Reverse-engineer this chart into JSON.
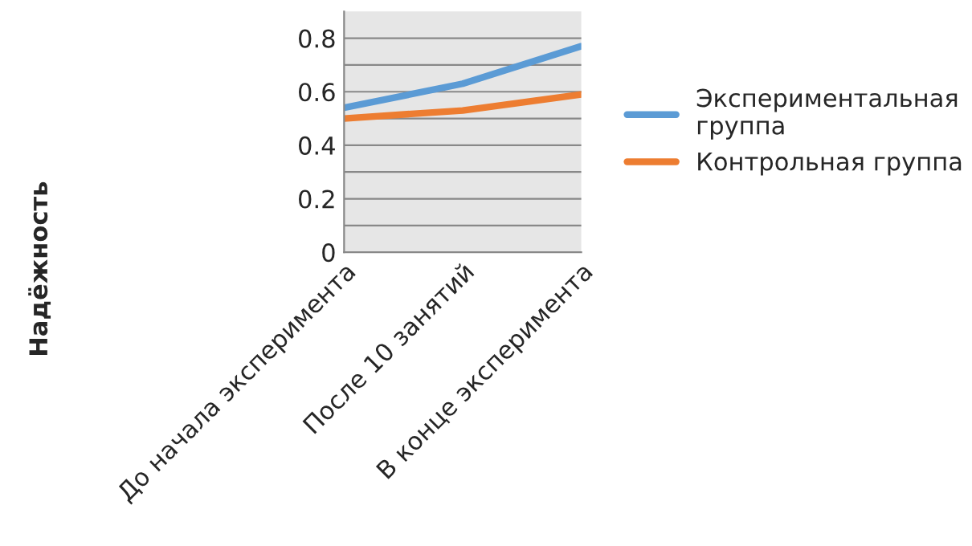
{
  "chart_data": {
    "type": "line",
    "ylabel": "Надёжность",
    "categories": [
      "До начала эксперимента",
      "После 10 занятий",
      "В конце эксперимента"
    ],
    "series": [
      {
        "name": "Экспериментальная группа",
        "color": "#5b9bd5",
        "values": [
          0.54,
          0.63,
          0.77
        ]
      },
      {
        "name": "Контрольная группа",
        "color": "#ed7d31",
        "values": [
          0.5,
          0.53,
          0.59
        ]
      }
    ],
    "ylim": [
      0,
      0.9
    ],
    "yticks": [
      0,
      {
        "value": 0.1,
        "label": null
      },
      0.2,
      {
        "value": 0.3,
        "label": null
      },
      0.4,
      {
        "value": 0.5,
        "label": null
      },
      0.6,
      {
        "value": 0.7,
        "label": null
      },
      0.8
    ],
    "grid": "y",
    "legend": "right",
    "marker": "none",
    "line_style": "solid"
  }
}
